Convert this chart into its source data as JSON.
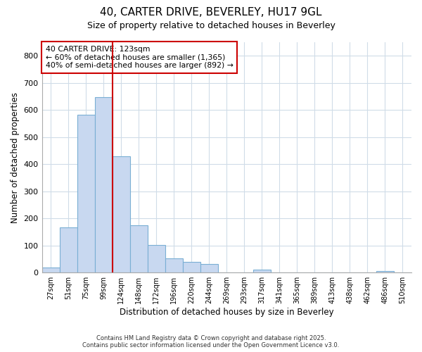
{
  "title1": "40, CARTER DRIVE, BEVERLEY, HU17 9GL",
  "title2": "Size of property relative to detached houses in Beverley",
  "xlabel": "Distribution of detached houses by size in Beverley",
  "ylabel": "Number of detached properties",
  "categories": [
    "27sqm",
    "51sqm",
    "75sqm",
    "99sqm",
    "124sqm",
    "148sqm",
    "172sqm",
    "196sqm",
    "220sqm",
    "244sqm",
    "269sqm",
    "293sqm",
    "317sqm",
    "341sqm",
    "365sqm",
    "389sqm",
    "413sqm",
    "438sqm",
    "462sqm",
    "486sqm",
    "510sqm"
  ],
  "values": [
    18,
    168,
    583,
    648,
    430,
    175,
    102,
    52,
    40,
    32,
    0,
    0,
    10,
    0,
    0,
    0,
    0,
    0,
    0,
    5,
    0
  ],
  "bar_color": "#c8d8f0",
  "bar_edge_color": "#7aafd4",
  "vline_color": "#cc0000",
  "vline_position": 3.5,
  "annotation_title": "40 CARTER DRIVE: 123sqm",
  "annotation_line1": "← 60% of detached houses are smaller (1,365)",
  "annotation_line2": "40% of semi-detached houses are larger (892) →",
  "annotation_box_color": "#ffffff",
  "annotation_box_edge": "#cc0000",
  "ylim": [
    0,
    850
  ],
  "yticks": [
    0,
    100,
    200,
    300,
    400,
    500,
    600,
    700,
    800
  ],
  "footer1": "Contains HM Land Registry data © Crown copyright and database right 2025.",
  "footer2": "Contains public sector information licensed under the Open Government Licence v3.0.",
  "fig_background": "#ffffff",
  "plot_background": "#ffffff",
  "grid_color": "#d0dce8",
  "title1_fontsize": 11,
  "title2_fontsize": 9
}
